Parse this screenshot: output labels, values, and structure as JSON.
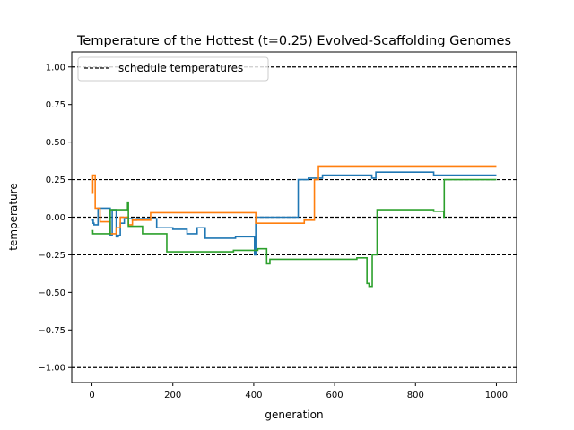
{
  "chart_data": {
    "type": "line",
    "title": "Temperature of the Hottest (t=0.25) Evolved-Scaffolding Genomes",
    "xlabel": "generation",
    "ylabel": "temperature",
    "xlim": [
      -50,
      1050
    ],
    "ylim": [
      -1.1,
      1.1
    ],
    "x_ticks": [
      0,
      200,
      400,
      600,
      800,
      1000
    ],
    "x_tick_labels": [
      "0",
      "200",
      "400",
      "600",
      "800",
      "1000"
    ],
    "y_ticks": [
      1.0,
      0.75,
      0.5,
      0.25,
      0.0,
      -0.25,
      -0.5,
      -0.75,
      -1.0
    ],
    "y_tick_labels": [
      "1.00",
      "0.75",
      "0.50",
      "0.25",
      "0.00",
      "−0.25",
      "−0.50",
      "−0.75",
      "−1.00"
    ],
    "grid": false,
    "legend": {
      "placement": "upper-left",
      "entries": [
        {
          "label": "schedule temperatures",
          "style": "dashed",
          "color": "#000000"
        }
      ]
    },
    "reference_lines": {
      "name": "schedule temperatures",
      "values": [
        1.0,
        0.25,
        0.0,
        -0.25,
        -1.0
      ],
      "color": "#000000",
      "style": "dashed"
    },
    "series": [
      {
        "color": "#1f77b4",
        "step": true,
        "points": [
          [
            0,
            -0.02
          ],
          [
            3,
            -0.04
          ],
          [
            5,
            -0.05
          ],
          [
            10,
            -0.05
          ],
          [
            15,
            0.06
          ],
          [
            40,
            0.06
          ],
          [
            45,
            -0.12
          ],
          [
            50,
            0.05
          ],
          [
            60,
            -0.13
          ],
          [
            65,
            -0.12
          ],
          [
            70,
            -0.04
          ],
          [
            80,
            -0.01
          ],
          [
            100,
            -0.02
          ],
          [
            110,
            -0.01
          ],
          [
            150,
            -0.01
          ],
          [
            160,
            -0.07
          ],
          [
            195,
            -0.07
          ],
          [
            200,
            -0.08
          ],
          [
            230,
            -0.08
          ],
          [
            235,
            -0.11
          ],
          [
            255,
            -0.11
          ],
          [
            260,
            -0.07
          ],
          [
            280,
            -0.14
          ],
          [
            350,
            -0.14
          ],
          [
            355,
            -0.13
          ],
          [
            400,
            -0.13
          ],
          [
            402,
            -0.25
          ],
          [
            405,
            0.0
          ],
          [
            505,
            0.0
          ],
          [
            510,
            0.25
          ],
          [
            530,
            0.25
          ],
          [
            535,
            0.26
          ],
          [
            565,
            0.26
          ],
          [
            570,
            0.28
          ],
          [
            690,
            0.28
          ],
          [
            692,
            0.26
          ],
          [
            700,
            0.26
          ],
          [
            702,
            0.3
          ],
          [
            840,
            0.3
          ],
          [
            845,
            0.28
          ],
          [
            1000,
            0.28
          ]
        ]
      },
      {
        "color": "#ff7f0e",
        "step": true,
        "points": [
          [
            0,
            0.16
          ],
          [
            2,
            0.28
          ],
          [
            5,
            0.28
          ],
          [
            8,
            0.06
          ],
          [
            15,
            0.06
          ],
          [
            20,
            -0.03
          ],
          [
            40,
            -0.03
          ],
          [
            45,
            -0.11
          ],
          [
            55,
            -0.11
          ],
          [
            60,
            -0.07
          ],
          [
            70,
            0.0
          ],
          [
            85,
            0.0
          ],
          [
            90,
            -0.05
          ],
          [
            100,
            -0.02
          ],
          [
            140,
            -0.02
          ],
          [
            145,
            0.03
          ],
          [
            400,
            0.03
          ],
          [
            405,
            -0.04
          ],
          [
            520,
            -0.04
          ],
          [
            525,
            -0.02
          ],
          [
            545,
            -0.02
          ],
          [
            550,
            0.25
          ],
          [
            555,
            0.25
          ],
          [
            560,
            0.34
          ],
          [
            1000,
            0.34
          ]
        ]
      },
      {
        "color": "#2ca02c",
        "step": true,
        "points": [
          [
            0,
            -0.09
          ],
          [
            2,
            -0.11
          ],
          [
            40,
            -0.11
          ],
          [
            45,
            0.05
          ],
          [
            85,
            0.05
          ],
          [
            88,
            0.1
          ],
          [
            90,
            -0.06
          ],
          [
            120,
            -0.06
          ],
          [
            125,
            -0.11
          ],
          [
            180,
            -0.11
          ],
          [
            185,
            -0.23
          ],
          [
            345,
            -0.23
          ],
          [
            350,
            -0.22
          ],
          [
            405,
            -0.22
          ],
          [
            410,
            -0.21
          ],
          [
            430,
            -0.21
          ],
          [
            432,
            -0.31
          ],
          [
            435,
            -0.31
          ],
          [
            440,
            -0.28
          ],
          [
            650,
            -0.28
          ],
          [
            655,
            -0.27
          ],
          [
            675,
            -0.27
          ],
          [
            680,
            -0.44
          ],
          [
            685,
            -0.46
          ],
          [
            690,
            -0.46
          ],
          [
            693,
            -0.25
          ],
          [
            700,
            -0.25
          ],
          [
            705,
            0.05
          ],
          [
            840,
            0.05
          ],
          [
            845,
            0.04
          ],
          [
            868,
            0.04
          ],
          [
            870,
            0.0
          ],
          [
            871,
            0.25
          ],
          [
            1000,
            0.25
          ]
        ]
      }
    ]
  }
}
